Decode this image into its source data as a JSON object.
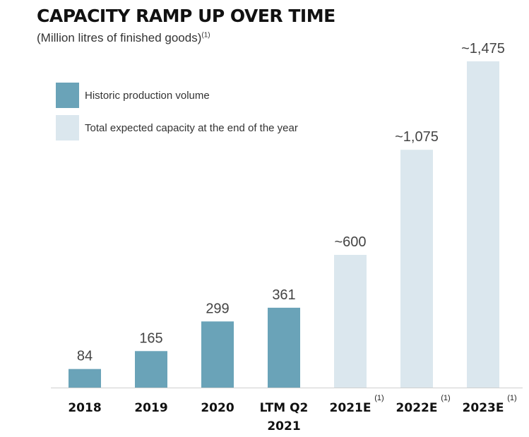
{
  "chart_data": {
    "type": "bar",
    "title": "CAPACITY RAMP UP OVER TIME",
    "subtitle": "(Million litres of finished goods)",
    "subtitle_note": "(1)",
    "categories": [
      "2018",
      "2019",
      "2020",
      "LTM Q2 2021",
      "2021E",
      "2022E",
      "2023E"
    ],
    "category_lines": [
      [
        "2018"
      ],
      [
        "2019"
      ],
      [
        "2020"
      ],
      [
        "LTM Q2",
        "2021"
      ],
      [
        "2021E"
      ],
      [
        "2022E"
      ],
      [
        "2023E"
      ]
    ],
    "category_notes": [
      "",
      "",
      "",
      "",
      "(1)",
      "(1)",
      "(1)"
    ],
    "values": [
      84,
      165,
      299,
      361,
      600,
      1075,
      1475
    ],
    "value_labels": [
      "84",
      "165",
      "299",
      "361",
      "~600",
      "~1,075",
      "~1,475"
    ],
    "series_of_bar": [
      0,
      0,
      0,
      0,
      1,
      1,
      1
    ],
    "series": [
      {
        "name": "Historic production volume",
        "color": "#6aa3b8"
      },
      {
        "name": "Total expected capacity at the end of the year",
        "color": "#dbe7ee"
      }
    ],
    "ylim": [
      0,
      1500
    ],
    "grid": false,
    "legend": "top-left"
  }
}
